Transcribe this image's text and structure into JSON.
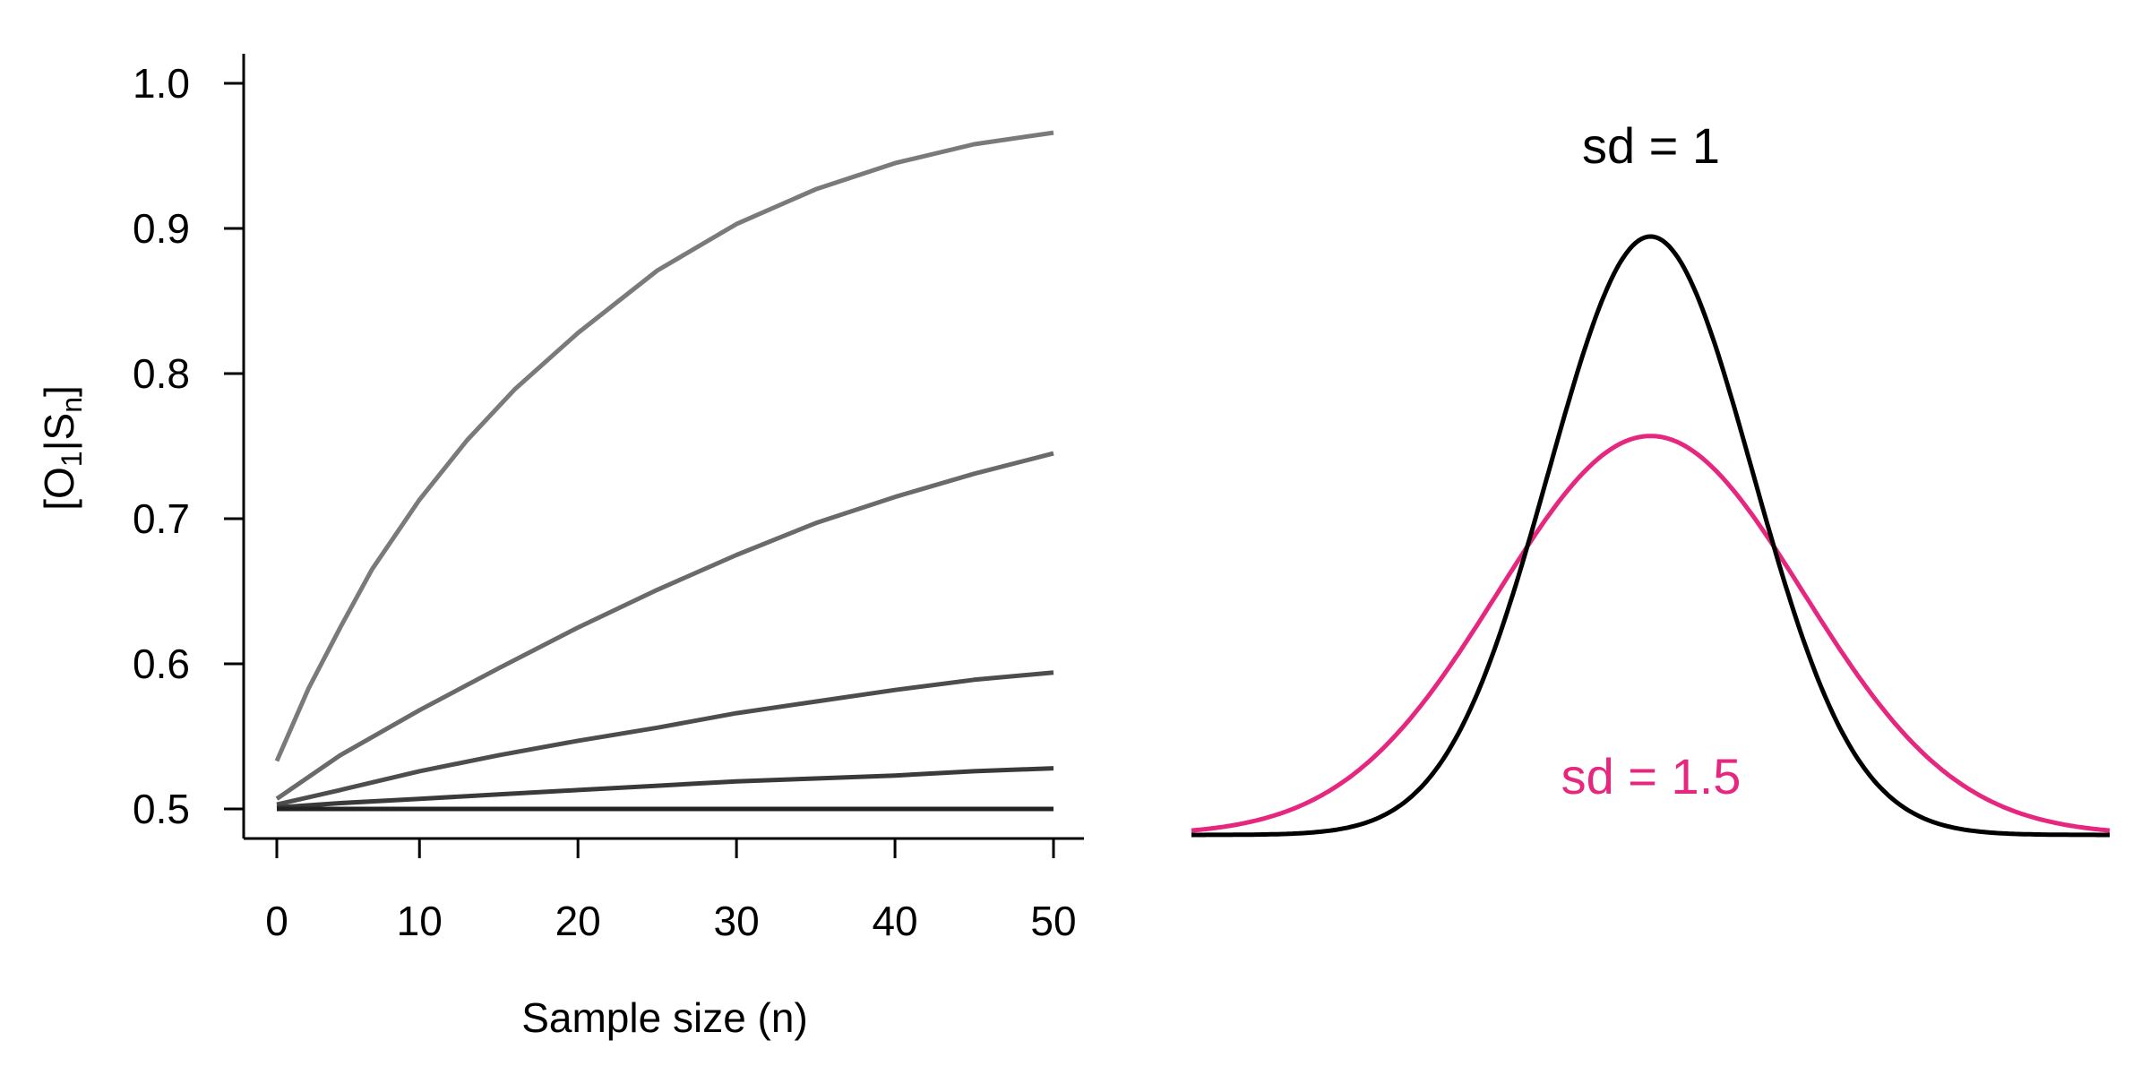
{
  "chart_data": [
    {
      "type": "line",
      "xlabel": "Sample size (n)",
      "ylabel": {
        "prefix": "[O",
        "sub1": "1",
        "mid": "|S",
        "sub2": "n",
        "suffix": "]"
      },
      "xlim": [
        1,
        50
      ],
      "ylim": [
        0.5,
        1.0
      ],
      "xticks": [
        "0",
        "10",
        "20",
        "30",
        "40",
        "50"
      ],
      "xtick_values": [
        0,
        10,
        20,
        30,
        40,
        50
      ],
      "yticks": [
        "0.5",
        "0.6",
        "0.7",
        "0.8",
        "0.9",
        "1.0"
      ],
      "ytick_values": [
        0.5,
        0.6,
        0.7,
        0.8,
        0.9,
        1.0
      ],
      "grid": false,
      "series": [
        {
          "color": "#7a7a7a",
          "x": [
            1,
            3,
            5,
            7,
            10,
            13,
            16,
            20,
            25,
            30,
            35,
            40,
            45,
            50
          ],
          "values": [
            0.533,
            0.583,
            0.625,
            0.665,
            0.713,
            0.754,
            0.789,
            0.828,
            0.871,
            0.903,
            0.927,
            0.945,
            0.958,
            0.966
          ]
        },
        {
          "color": "#6a6a6a",
          "x": [
            1,
            5,
            10,
            15,
            20,
            25,
            30,
            35,
            40,
            45,
            50
          ],
          "values": [
            0.507,
            0.537,
            0.568,
            0.597,
            0.625,
            0.651,
            0.675,
            0.697,
            0.715,
            0.731,
            0.745
          ]
        },
        {
          "color": "#4d4d4d",
          "x": [
            1,
            5,
            10,
            15,
            20,
            25,
            30,
            35,
            40,
            45,
            50
          ],
          "values": [
            0.503,
            0.513,
            0.526,
            0.537,
            0.547,
            0.556,
            0.566,
            0.574,
            0.582,
            0.589,
            0.594
          ]
        },
        {
          "color": "#3a3a3a",
          "x": [
            1,
            5,
            10,
            15,
            20,
            25,
            30,
            35,
            40,
            45,
            50
          ],
          "values": [
            0.501,
            0.504,
            0.507,
            0.51,
            0.513,
            0.516,
            0.519,
            0.521,
            0.523,
            0.526,
            0.528
          ]
        },
        {
          "color": "#222222",
          "x": [
            1,
            50
          ],
          "values": [
            0.5,
            0.5
          ]
        }
      ]
    },
    {
      "type": "line",
      "xlim": [
        -4.5,
        4.5
      ],
      "series": [
        {
          "name": "sd = 1",
          "color": "#000000",
          "distribution": "normal",
          "mean": 0,
          "sd": 1
        },
        {
          "name": "sd = 1.5",
          "color": "#e6277f",
          "distribution": "normal",
          "mean": 0,
          "sd": 1.5
        }
      ]
    }
  ]
}
